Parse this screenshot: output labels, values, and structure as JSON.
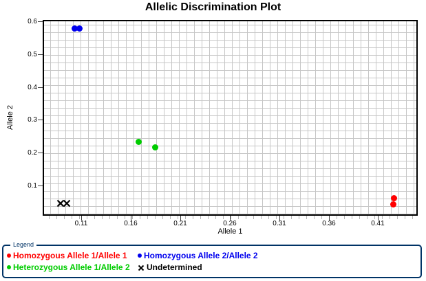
{
  "window_title": "Allelic Discrimination Plot",
  "chart_data": {
    "type": "scatter",
    "title": "Allelic Discrimination Plot",
    "xlabel": "Allele 1",
    "ylabel": "Allele 2",
    "xlim": [
      0.071,
      0.45
    ],
    "ylim": [
      0.008,
      0.604
    ],
    "grid": true,
    "legend_position": "bottom",
    "x_ticks": [
      {
        "value": 0.11,
        "label": "0.11"
      },
      {
        "value": 0.16,
        "label": "0.16"
      },
      {
        "value": 0.21,
        "label": "0.21"
      },
      {
        "value": 0.26,
        "label": "0.26"
      },
      {
        "value": 0.31,
        "label": "0.31"
      },
      {
        "value": 0.36,
        "label": "0.36"
      },
      {
        "value": 0.41,
        "label": "0.41"
      }
    ],
    "y_ticks": [
      {
        "value": 0.1,
        "label": "0.1"
      },
      {
        "value": 0.2,
        "label": "0.2"
      },
      {
        "value": 0.3,
        "label": "0.3"
      },
      {
        "value": 0.4,
        "label": "0.4"
      },
      {
        "value": 0.5,
        "label": "0.5"
      },
      {
        "value": 0.6,
        "label": "0.6"
      }
    ],
    "series": [
      {
        "name": "Homozygous Allele 1/Allele 1",
        "marker": "circle",
        "color": "#ff0000",
        "points": [
          {
            "x": 0.426,
            "y": 0.062
          },
          {
            "x": 0.425,
            "y": 0.042
          }
        ]
      },
      {
        "name": "Homozygous Allele 2/Allele 2",
        "marker": "circle",
        "color": "#0000ee",
        "points": [
          {
            "x": 0.103,
            "y": 0.578
          },
          {
            "x": 0.108,
            "y": 0.577
          }
        ]
      },
      {
        "name": "Heterozygous Allele 1/Allele 2",
        "marker": "circle",
        "color": "#00cc00",
        "points": [
          {
            "x": 0.168,
            "y": 0.232
          },
          {
            "x": 0.185,
            "y": 0.217
          }
        ]
      },
      {
        "name": "Undetermined",
        "marker": "x",
        "color": "#000000",
        "points": [
          {
            "x": 0.089,
            "y": 0.047
          },
          {
            "x": 0.095,
            "y": 0.047
          }
        ]
      }
    ]
  },
  "legend": {
    "title": "Legend",
    "items": [
      {
        "label": "Homozygous Allele 1/Allele 1",
        "color": "#ff0000",
        "marker": "circle"
      },
      {
        "label": "Homozygous Allele 2/Allele 2",
        "color": "#0000ee",
        "marker": "circle"
      },
      {
        "label": "Heterozygous Allele 1/Allele 2",
        "color": "#00cc00",
        "marker": "circle"
      },
      {
        "label": "Undetermined",
        "color": "#000000",
        "marker": "x"
      }
    ]
  },
  "colors": {
    "background": "#ffffff",
    "grid": "#c6c6c6",
    "plot_border": "#000000",
    "tick": "#404040",
    "legend_border": "#003366",
    "legend_title": "#003366"
  }
}
